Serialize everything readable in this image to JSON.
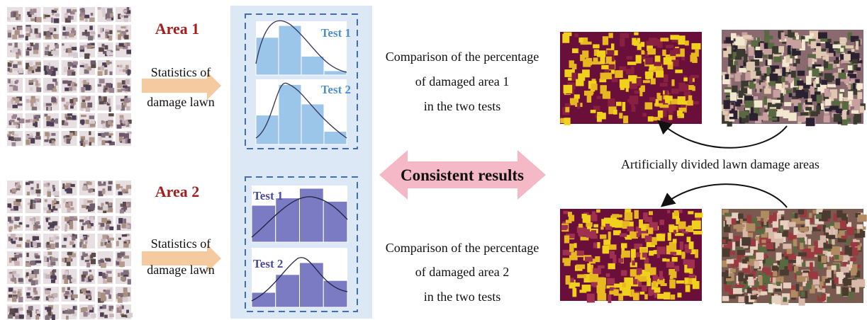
{
  "areas": [
    {
      "label": "Area 1",
      "arrow_label": [
        "Statistics of",
        "damage lawn"
      ],
      "tests": [
        "Test 1",
        "Test 2"
      ],
      "comparison": [
        "Comparison of the percentage",
        "of damaged area 1",
        "in the two tests"
      ]
    },
    {
      "label": "Area 2",
      "arrow_label": [
        "Statistics of",
        "damage lawn"
      ],
      "tests": [
        "Test 1",
        "Test 2"
      ],
      "comparison": [
        "Comparison of the percentage",
        "of damaged area 2",
        "in the two tests"
      ]
    }
  ],
  "center_label": "Consistent results",
  "right_label": "Artificially divided lawn damage areas"
}
